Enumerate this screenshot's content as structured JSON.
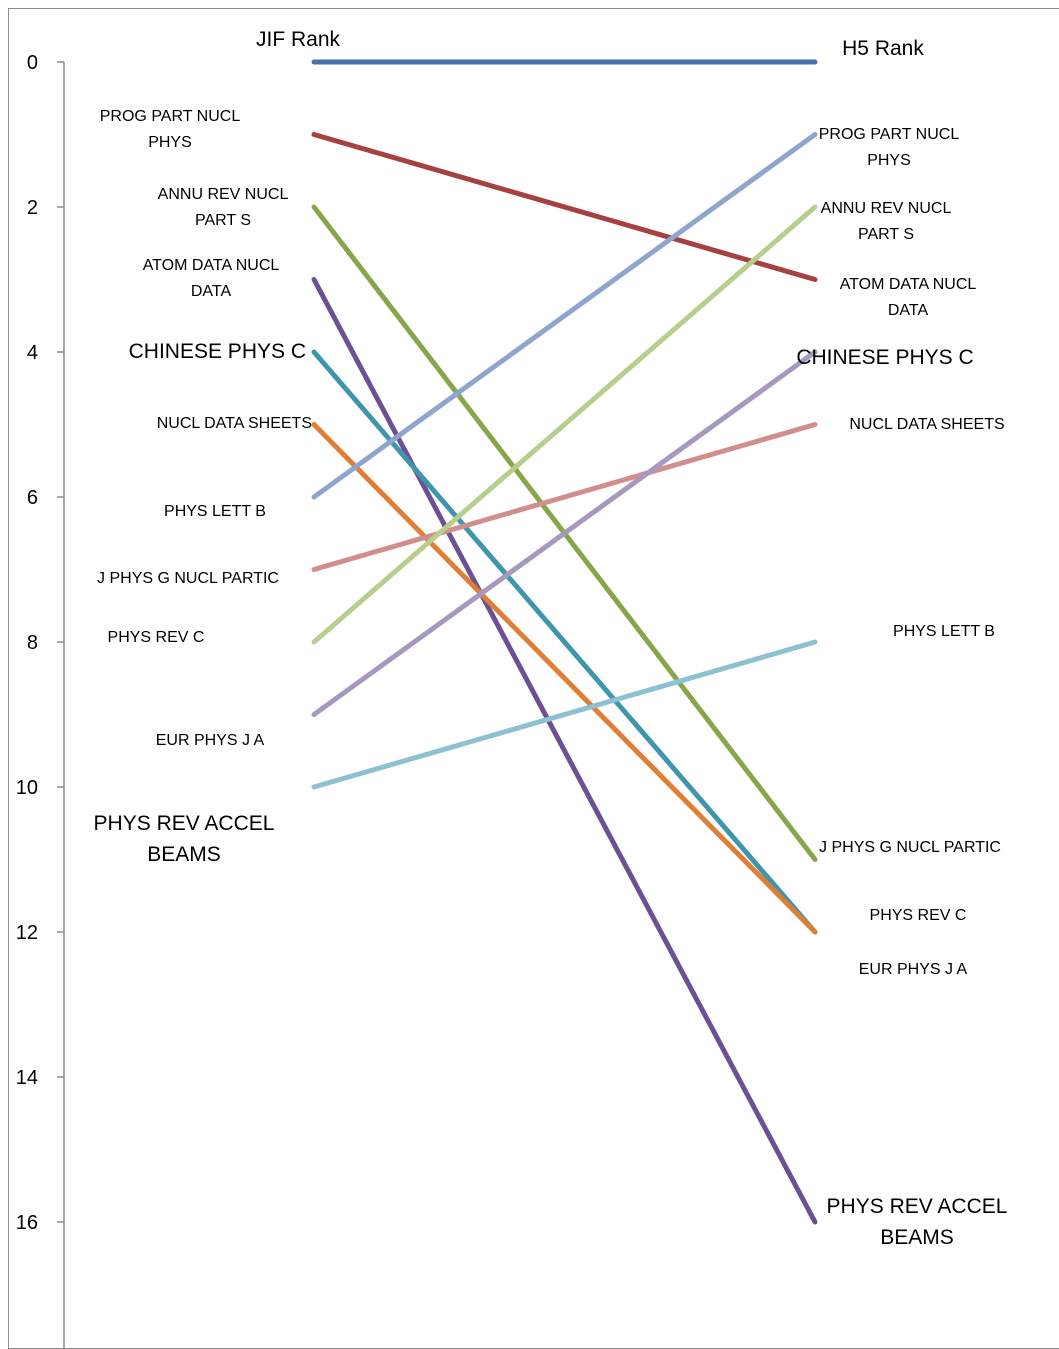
{
  "chart_data": {
    "type": "line",
    "x": [
      "JIF Rank",
      "H5 Rank"
    ],
    "y_axis": {
      "ylim": [
        0,
        17
      ],
      "inverted": true,
      "ticks": [
        0,
        2,
        4,
        6,
        8,
        10,
        12,
        14,
        16
      ]
    },
    "grid": false,
    "legend": "none",
    "series": [
      {
        "values": [
          0,
          0
        ],
        "color": "#4A72A8"
      },
      {
        "left_label": "PROG PART NUCL\nPHYS",
        "right_label": "PROG PART NUCL\nPHYS",
        "values": [
          1,
          3
        ],
        "color": "#A6413F"
      },
      {
        "left_label": "ANNU REV NUCL\nPART S",
        "right_label": "ANNU REV NUCL\nPART S",
        "values": [
          2,
          11
        ],
        "color": "#87A64A"
      },
      {
        "left_label": "ATOM DATA NUCL\nDATA",
        "right_label": "ATOM DATA NUCL\nDATA",
        "values": [
          3,
          16
        ],
        "color": "#6C5093"
      },
      {
        "left_label": "CHINESE PHYS C",
        "right_label": "CHINESE PHYS C",
        "big_left": true,
        "big_right": true,
        "values": [
          4,
          12
        ],
        "color": "#3E95AE"
      },
      {
        "left_label": "NUCL DATA SHEETS",
        "right_label": "NUCL DATA SHEETS",
        "values": [
          5,
          12
        ],
        "color": "#E07E35"
      },
      {
        "left_label": "PHYS LETT B",
        "right_label": "PHYS LETT B",
        "values": [
          6,
          1
        ],
        "color": "#8EA6CE"
      },
      {
        "left_label": "J PHYS G NUCL PARTIC",
        "right_label": "J PHYS G NUCL PARTIC",
        "values": [
          7,
          5
        ],
        "color": "#D28E8C"
      },
      {
        "left_label": "PHYS REV C",
        "right_label": "PHYS REV C",
        "values": [
          8,
          2
        ],
        "color": "#B7CE8D"
      },
      {
        "left_label": "EUR PHYS J A",
        "right_label": "EUR PHYS J A",
        "values": [
          9,
          4
        ],
        "color": "#A698BE"
      },
      {
        "left_label": "PHYS REV ACCEL\nBEAMS",
        "right_label": "PHYS REV ACCEL\nBEAMS",
        "big_left": true,
        "big_right": true,
        "values": [
          10,
          8
        ],
        "color": "#8DC0D3"
      }
    ]
  }
}
